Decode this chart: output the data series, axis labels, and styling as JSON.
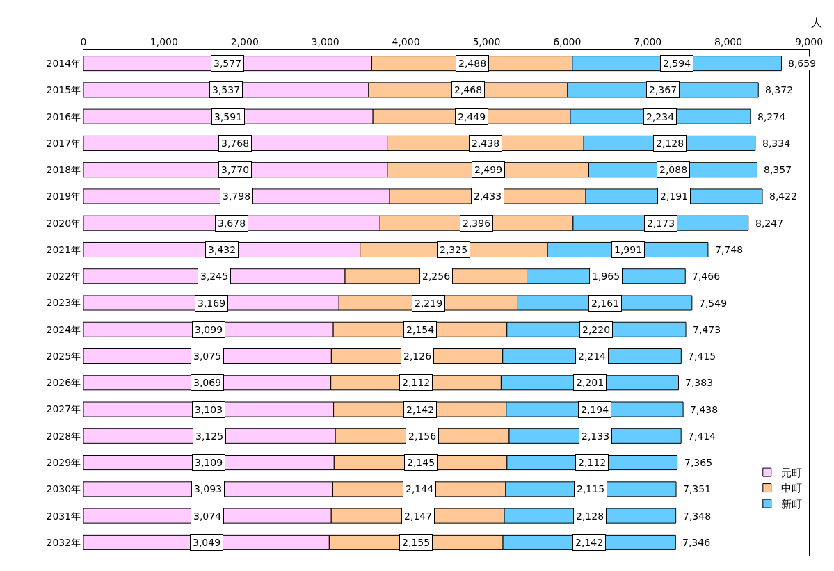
{
  "chart_data": {
    "type": "bar",
    "orientation": "horizontal",
    "stacked": true,
    "xlabel": "人",
    "categories": [
      "2014年",
      "2015年",
      "2016年",
      "2017年",
      "2018年",
      "2019年",
      "2020年",
      "2021年",
      "2022年",
      "2023年",
      "2024年",
      "2025年",
      "2026年",
      "2027年",
      "2028年",
      "2029年",
      "2030年",
      "2031年",
      "2032年"
    ],
    "series": [
      {
        "name": "元町",
        "color": "#ffccff",
        "values": [
          3577,
          3537,
          3591,
          3768,
          3770,
          3798,
          3678,
          3432,
          3245,
          3169,
          3099,
          3075,
          3069,
          3103,
          3125,
          3109,
          3093,
          3074,
          3049
        ],
        "value_labels": [
          "3,577",
          "3,537",
          "3,591",
          "3,768",
          "3,770",
          "3,798",
          "3,678",
          "3,432",
          "3,245",
          "3,169",
          "3,099",
          "3,075",
          "3,069",
          "3,103",
          "3,125",
          "3,109",
          "3,093",
          "3,074",
          "3,049"
        ]
      },
      {
        "name": "中町",
        "color": "#ffc896",
        "values": [
          2488,
          2468,
          2449,
          2438,
          2499,
          2433,
          2396,
          2325,
          2256,
          2219,
          2154,
          2126,
          2112,
          2142,
          2156,
          2145,
          2144,
          2147,
          2155
        ],
        "value_labels": [
          "2,488",
          "2,468",
          "2,449",
          "2,438",
          "2,499",
          "2,433",
          "2,396",
          "2,325",
          "2,256",
          "2,219",
          "2,154",
          "2,126",
          "2,112",
          "2,142",
          "2,156",
          "2,145",
          "2,144",
          "2,147",
          "2,155"
        ]
      },
      {
        "name": "新町",
        "color": "#66ccff",
        "values": [
          2594,
          2367,
          2234,
          2128,
          2088,
          2191,
          2173,
          1991,
          1965,
          2161,
          2220,
          2214,
          2201,
          2194,
          2133,
          2112,
          2115,
          2128,
          2142
        ],
        "value_labels": [
          "2,594",
          "2,367",
          "2,234",
          "2,128",
          "2,088",
          "2,191",
          "2,173",
          "1,991",
          "1,965",
          "2,161",
          "2,220",
          "2,214",
          "2,201",
          "2,194",
          "2,133",
          "2,112",
          "2,115",
          "2,128",
          "2,142"
        ]
      }
    ],
    "totals": [
      "8,659",
      "8,372",
      "8,274",
      "8,334",
      "8,357",
      "8,422",
      "8,247",
      "7,748",
      "7,466",
      "7,549",
      "7,473",
      "7,415",
      "7,383",
      "7,438",
      "7,414",
      "7,365",
      "7,351",
      "7,348",
      "7,346"
    ],
    "xlim": [
      0,
      9000
    ],
    "xticks": [
      0,
      {
        "value": 1000,
        "label": "1,000"
      },
      {
        "value": 2000,
        "label": "2,000"
      },
      {
        "value": 3000,
        "label": "3,000"
      },
      {
        "value": 4000,
        "label": "4,000"
      },
      {
        "value": 5000,
        "label": "5,000"
      },
      {
        "value": 6000,
        "label": "6,000"
      },
      {
        "value": 7000,
        "label": "7,000"
      },
      {
        "value": 8000,
        "label": "8,000"
      },
      {
        "value": 9000,
        "label": "9,000"
      }
    ],
    "grid": false,
    "legend": "bottom right"
  }
}
